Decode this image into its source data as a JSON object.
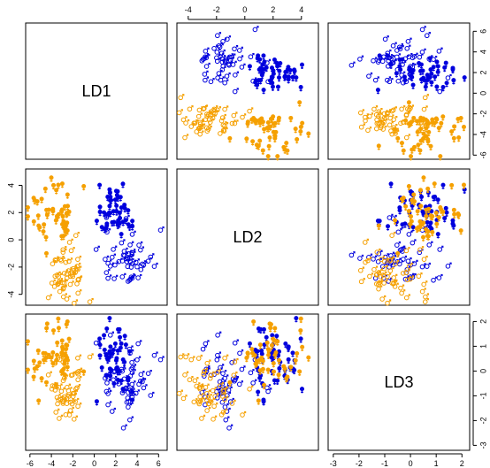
{
  "chart_data": {
    "type": "scatter",
    "variables": [
      "LD1",
      "LD2",
      "LD3"
    ],
    "ranges": {
      "LD1": [
        -6.4,
        6.8
      ],
      "LD2": [
        -4.8,
        5.2
      ],
      "LD3": [
        -3.2,
        2.3
      ]
    },
    "ticks": {
      "LD1": [
        -6,
        -4,
        -2,
        0,
        2,
        4,
        6
      ],
      "LD2": [
        -6,
        -4,
        -2,
        0,
        2,
        4,
        6
      ],
      "LD3": [
        -3,
        -2,
        -1,
        0,
        1,
        2
      ]
    },
    "tick_labels": {
      "top": [
        "-4",
        "-2",
        "0",
        "2",
        "4"
      ],
      "left": [
        "4",
        "2",
        "0",
        "-2",
        "-4"
      ],
      "bottom_col1": [
        "-6",
        "-4",
        "-2",
        "0",
        "2",
        "4",
        "6"
      ],
      "bottom_col3": [
        "-3",
        "-2",
        "-1",
        "0",
        "1",
        "2"
      ],
      "right_row1": [
        "6",
        "4",
        "2",
        "0",
        "-2",
        "-4",
        "-6"
      ],
      "right_row3": [
        "2",
        "1",
        "0",
        "-1",
        "-2",
        "-3"
      ]
    },
    "colors": {
      "blue": "#0000dd",
      "orange": "#f5a000"
    },
    "groups": [
      {
        "color": "blue",
        "symbol": "male",
        "n": 50,
        "center": [
          3.0,
          -1.1,
          -0.5
        ],
        "spread": [
          1.2,
          1.0,
          0.8
        ]
      },
      {
        "color": "blue",
        "symbol": "female",
        "n": 50,
        "center": [
          2.0,
          2.0,
          0.6
        ],
        "spread": [
          0.9,
          1.0,
          0.7
        ]
      },
      {
        "color": "orange",
        "symbol": "male",
        "n": 50,
        "center": [
          -2.5,
          -2.6,
          -0.5
        ],
        "spread": [
          0.9,
          1.0,
          0.8
        ]
      },
      {
        "color": "orange",
        "symbol": "female",
        "n": 50,
        "center": [
          -3.5,
          1.8,
          0.5
        ],
        "spread": [
          1.2,
          1.0,
          0.8
        ]
      }
    ]
  }
}
